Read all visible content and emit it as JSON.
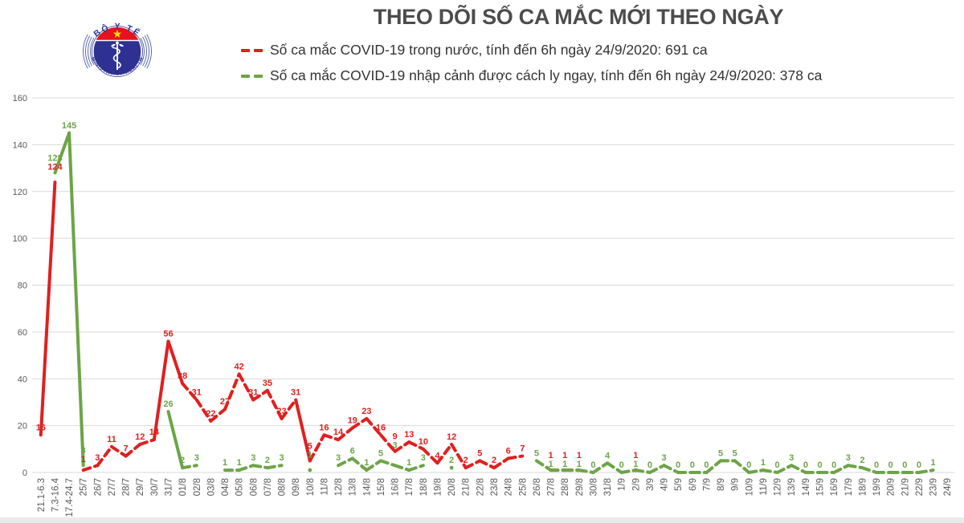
{
  "header": {
    "title": "THEO DÕI SỐ CA MẮC MỚI THEO NGÀY"
  },
  "logo": {
    "arc_top_text": "BỘ Y TẾ",
    "arc_bottom_text": "MINISTRY OF HEALTH",
    "circle_color": "#2e3192",
    "band_color": "#e8111d",
    "star_color": "#ffdf00"
  },
  "legend": [
    {
      "label": "Số ca mắc COVID-19 trong nước, tính đến 6h ngày 24/9/2020: 691 ca",
      "color": "#e01f1f"
    },
    {
      "label": "Số ca mắc COVID-19 nhập cảnh được cách ly ngay, tính đến 6h ngày 24/9/2020: 378 ca",
      "color": "#6ca447"
    }
  ],
  "chart_data": {
    "type": "line",
    "title": "THEO DÕI SỐ CA MẮC MỚI THEO NGÀY",
    "xlabel": "",
    "ylabel": "",
    "ylim": [
      0,
      160
    ],
    "ytick_step": 20,
    "grid": true,
    "grid_color": "#d9d9d9",
    "tick_label_color": "#595959",
    "legend_position": "top",
    "categories": [
      "21.1-6.3",
      "7.3-16.4",
      "17.4-24.7",
      "25/7",
      "26/7",
      "27/7",
      "28/7",
      "29/7",
      "30/7",
      "31/7",
      "01/8",
      "02/8",
      "03/8",
      "04/8",
      "05/8",
      "06/8",
      "07/8",
      "08/8",
      "09/8",
      "10/8",
      "11/8",
      "12/8",
      "13/8",
      "14/8",
      "15/8",
      "16/8",
      "17/8",
      "18/8",
      "19/8",
      "20/8",
      "21/8",
      "22/8",
      "23/8",
      "24/8",
      "25/8",
      "26/8",
      "27/8",
      "28/8",
      "29/8",
      "30/8",
      "31/8",
      "1/9",
      "2/9",
      "3/9",
      "4/9",
      "5/9",
      "6/9",
      "7/9",
      "8/9",
      "9/9",
      "10/9",
      "11/9",
      "12/9",
      "13/9",
      "14/9",
      "15/9",
      "16/9",
      "17/9",
      "18/9",
      "19/9",
      "20/9",
      "21/9",
      "22/9",
      "23/9",
      "24/9"
    ],
    "series": [
      {
        "name": "Số ca mắc COVID-19 trong nước",
        "color": "#e01f1f",
        "total_label": "691 ca",
        "values": [
          16,
          124,
          null,
          1,
          3,
          11,
          7,
          12,
          14,
          56,
          38,
          31,
          22,
          27,
          42,
          31,
          35,
          23,
          31,
          5,
          16,
          14,
          19,
          23,
          16,
          9,
          13,
          10,
          4,
          12,
          2,
          5,
          2,
          6,
          7,
          null,
          1,
          1,
          1,
          null,
          null,
          null,
          1,
          null,
          null,
          null,
          null,
          null,
          null,
          null,
          null,
          null,
          null,
          null,
          null,
          null,
          null,
          null,
          null,
          null,
          null,
          null,
          null,
          null,
          null
        ]
      },
      {
        "name": "Số ca mắc COVID-19 nhập cảnh được cách ly ngay",
        "color": "#6ca447",
        "total_label": "378 ca",
        "values": [
          null,
          128,
          145,
          3,
          null,
          null,
          null,
          null,
          null,
          26,
          2,
          3,
          null,
          1,
          1,
          3,
          2,
          3,
          null,
          1,
          null,
          3,
          6,
          1,
          5,
          3,
          1,
          3,
          null,
          2,
          null,
          null,
          null,
          null,
          null,
          5,
          1,
          1,
          1,
          0,
          4,
          0,
          1,
          0,
          3,
          0,
          0,
          0,
          5,
          5,
          0,
          1,
          0,
          3,
          0,
          0,
          0,
          3,
          2,
          0,
          0,
          0,
          0,
          1,
          null
        ]
      }
    ]
  }
}
